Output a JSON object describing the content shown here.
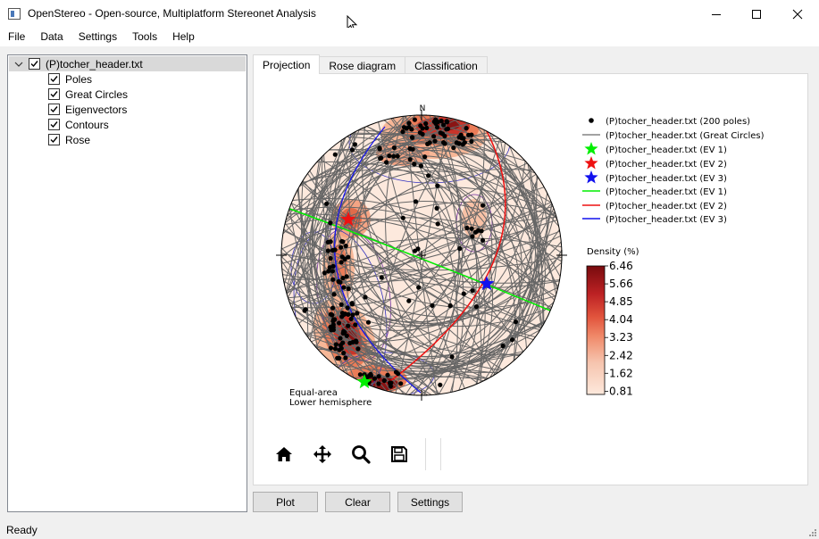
{
  "window": {
    "title": "OpenStereo - Open-source, Multiplatform Stereonet Analysis"
  },
  "menu": [
    "File",
    "Data",
    "Settings",
    "Tools",
    "Help"
  ],
  "tree": {
    "root": "(P)tocher_header.txt",
    "children": [
      "Poles",
      "Great Circles",
      "Eigenvectors",
      "Contours",
      "Rose"
    ]
  },
  "tabs": [
    "Projection",
    "Rose diagram",
    "Classification"
  ],
  "plot": {
    "north_label": "N",
    "projection_note_1": "Equal-area",
    "projection_note_2": "Lower hemisphere",
    "legend": [
      "(P)tocher_header.txt (200 poles)",
      "(P)tocher_header.txt (Great Circles)",
      "(P)tocher_header.txt (EV 1)",
      "(P)tocher_header.txt (EV 2)",
      "(P)tocher_header.txt (EV 3)",
      "(P)tocher_header.txt (EV 1)",
      "(P)tocher_header.txt (EV 2)",
      "(P)tocher_header.txt (EV 3)"
    ],
    "colorbar_title": "Density (%)",
    "colorbar_ticks": [
      "6.46",
      "5.66",
      "4.85",
      "4.04",
      "3.23",
      "2.42",
      "1.62",
      "0.81"
    ],
    "colors": {
      "ev1": "#00ee00",
      "ev2": "#ee1111",
      "ev3": "#1111ee",
      "circles": "#666666"
    }
  },
  "toolbar_icons": [
    "home-icon",
    "pan-icon",
    "zoom-icon",
    "save-icon"
  ],
  "buttons": {
    "plot": "Plot",
    "clear": "Clear",
    "settings": "Settings"
  },
  "status": "Ready"
}
